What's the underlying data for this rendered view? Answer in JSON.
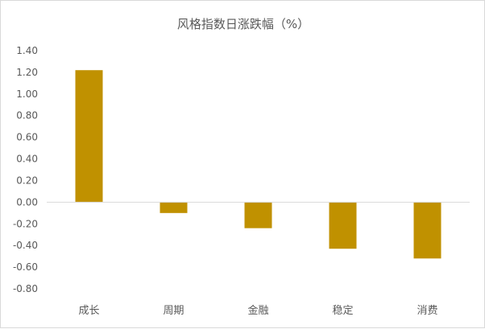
{
  "chart_data": {
    "type": "bar",
    "title": "风格指数日涨跌幅（%）",
    "categories": [
      "成长",
      "周期",
      "金融",
      "稳定",
      "消费"
    ],
    "values": [
      1.22,
      -0.1,
      -0.24,
      -0.43,
      -0.52
    ],
    "ylim": [
      -0.8,
      1.4
    ],
    "yticks": [
      "1.40",
      "1.20",
      "1.00",
      "0.80",
      "0.60",
      "0.40",
      "0.20",
      "0.00",
      "-0.20",
      "-0.40",
      "-0.60",
      "-0.80"
    ],
    "xlabel": "",
    "ylabel": "",
    "bar_color": "#C09100",
    "axis_color": "#d9d9d9",
    "grid": false,
    "legend": "none"
  }
}
